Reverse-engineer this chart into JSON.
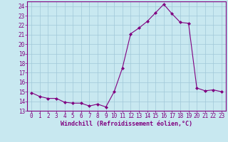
{
  "x": [
    0,
    1,
    2,
    3,
    4,
    5,
    6,
    7,
    8,
    9,
    10,
    11,
    12,
    13,
    14,
    15,
    16,
    17,
    18,
    19,
    20,
    21,
    22,
    23
  ],
  "y": [
    14.9,
    14.5,
    14.3,
    14.3,
    13.9,
    13.8,
    13.8,
    13.5,
    13.7,
    13.4,
    15.0,
    17.5,
    21.1,
    21.7,
    22.4,
    23.3,
    24.2,
    23.2,
    22.3,
    22.2,
    15.4,
    15.1,
    15.2,
    15.0
  ],
  "line_color": "#800080",
  "bg_color": "#c8e8f0",
  "grid_color": "#a0c8d8",
  "xlabel": "Windchill (Refroidissement éolien,°C)",
  "ylim": [
    13,
    24.5
  ],
  "yticks": [
    13,
    14,
    15,
    16,
    17,
    18,
    19,
    20,
    21,
    22,
    23,
    24
  ],
  "xticks": [
    0,
    1,
    2,
    3,
    4,
    5,
    6,
    7,
    8,
    9,
    10,
    11,
    12,
    13,
    14,
    15,
    16,
    17,
    18,
    19,
    20,
    21,
    22,
    23
  ],
  "tick_color": "#800080",
  "font_family": "monospace",
  "tick_fontsize": 5.5,
  "xlabel_fontsize": 6.0
}
